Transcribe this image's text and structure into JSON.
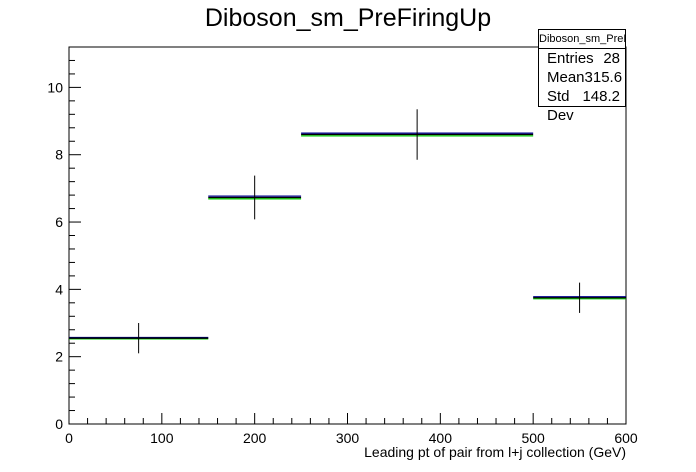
{
  "chart_data": {
    "type": "histogram",
    "title": "Diboson_sm_PreFiringUp",
    "xlabel": "Leading pt of pair from l+j collection (GeV)",
    "ylabel": "",
    "xlim": [
      0,
      600
    ],
    "ylim": [
      0,
      11.2
    ],
    "x_ticks": [
      "0",
      "100",
      "200",
      "300",
      "400",
      "500",
      "600"
    ],
    "y_ticks": [
      "0",
      "2",
      "4",
      "6",
      "8",
      "10"
    ],
    "bins": [
      {
        "low": 0,
        "high": 150,
        "center": 75,
        "value": 2.55,
        "error": 0.45
      },
      {
        "low": 150,
        "high": 250,
        "center": 200,
        "value": 6.73,
        "error": 0.65
      },
      {
        "low": 250,
        "high": 500,
        "center": 375,
        "value": 8.6,
        "error": 0.75
      },
      {
        "low": 500,
        "high": 600,
        "center": 550,
        "value": 3.75,
        "error": 0.45
      }
    ],
    "series": [
      {
        "name": "",
        "color": "#00008b",
        "values": [
          2.57,
          6.77,
          8.64,
          3.78
        ]
      },
      {
        "name": "",
        "color": "#000000",
        "values": [
          2.55,
          6.73,
          8.6,
          3.75
        ]
      },
      {
        "name": "",
        "color": "#00cc00",
        "values": [
          2.53,
          6.69,
          8.56,
          3.72
        ]
      }
    ],
    "grid": false,
    "legend": "none"
  },
  "stats_box": {
    "name": "Diboson_sm_PreFiringUp",
    "entries_label": "Entries",
    "entries_value": "28",
    "mean_label": "Mean",
    "mean_value": "315.6",
    "std_label": "Std Dev",
    "std_value": "148.2"
  }
}
